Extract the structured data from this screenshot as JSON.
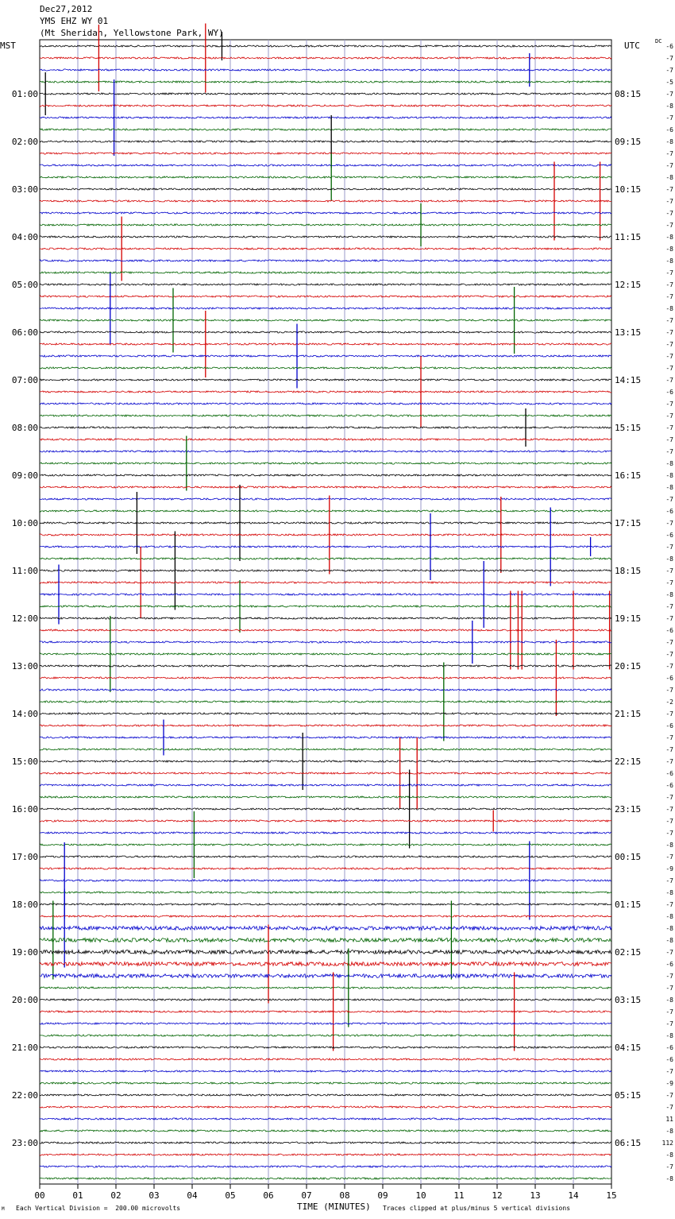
{
  "header": {
    "date": "Dec27,2012",
    "station": "YMS EHZ WY 01",
    "location": "(Mt Sheridan, Yellowstone Park, WY)"
  },
  "left_tz": "MST",
  "right_tz": "UTC",
  "dc_label": "DC",
  "footer": {
    "scale_note": "Each Vertical Division =  200.00 microvolts",
    "xlabel": "TIME (MINUTES)",
    "clip_note": "Traces clipped at plus/minus 5 vertical divisions",
    "corner_mark": "M"
  },
  "trace_colors": [
    "#000000",
    "#d40000",
    "#0000cc",
    "#006400"
  ],
  "grid_color": "#9a9ac8",
  "chart_data": {
    "type": "line",
    "title": "YMS EHZ WY 01 helicorder",
    "xlabel": "TIME (MINUTES)",
    "xlim": [
      0,
      15
    ],
    "x_ticks": [
      "00",
      "01",
      "02",
      "03",
      "04",
      "05",
      "06",
      "07",
      "08",
      "09",
      "10",
      "11",
      "12",
      "13",
      "14",
      "15"
    ],
    "rows_per_hour": 4,
    "trace_count": 96,
    "left_hour_labels": [
      "01:00",
      "02:00",
      "03:00",
      "04:00",
      "05:00",
      "06:00",
      "07:00",
      "08:00",
      "09:00",
      "10:00",
      "11:00",
      "12:00",
      "13:00",
      "14:00",
      "15:00",
      "16:00",
      "17:00",
      "18:00",
      "19:00",
      "20:00",
      "21:00",
      "22:00",
      "23:00"
    ],
    "right_hour_labels": [
      "08:15",
      "09:15",
      "10:15",
      "11:15",
      "12:15",
      "13:15",
      "14:15",
      "15:15",
      "16:15",
      "17:15",
      "18:15",
      "19:15",
      "20:15",
      "21:15",
      "22:15",
      "23:15",
      "00:15",
      "01:15",
      "02:15",
      "03:15",
      "04:15",
      "05:15",
      "06:15"
    ],
    "dc_offsets": [
      "-6",
      "-7",
      "-7",
      "-5",
      "-7",
      "-8",
      "-7",
      "-6",
      "-8",
      "-7",
      "-7",
      "-8",
      "-7",
      "-7",
      "-7",
      "-7",
      "-8",
      "-8",
      "-8",
      "-7",
      "-7",
      "-7",
      "-8",
      "-7",
      "-7",
      "-7",
      "-7",
      "-7",
      "-7",
      "-6",
      "-7",
      "-7",
      "-7",
      "-7",
      "-7",
      "-8",
      "-8",
      "-8",
      "-7",
      "-6",
      "-7",
      "-6",
      "-7",
      "-8",
      "-7",
      "-7",
      "-8",
      "-7",
      "-7",
      "-6",
      "-7",
      "-7",
      "-7",
      "-6",
      "-7",
      "-2",
      "-7",
      "-6",
      "-7",
      "-7",
      "-7",
      "-6",
      "-6",
      "-7",
      "-7",
      "-7",
      "-7",
      "-8",
      "-7",
      "-9",
      "-7",
      "-8",
      "-7",
      "-8",
      "-8",
      "-8",
      "-7",
      "-6",
      "-7",
      "-7",
      "-8",
      "-7",
      "-7",
      "-8",
      "-6",
      "-6",
      "-7",
      "-9",
      "-7",
      "-7",
      "11",
      "-8",
      "112",
      "-8",
      "-7",
      "-8",
      "-7",
      "-7",
      "-8",
      "-7"
    ],
    "spikes": [
      {
        "row": 0,
        "x": 4.78,
        "amp": 1.2
      },
      {
        "row": 1,
        "x": 1.55,
        "amp": 2.8
      },
      {
        "row": 1,
        "x": 4.35,
        "amp": 2.9
      },
      {
        "row": 2,
        "x": 12.85,
        "amp": 1.4
      },
      {
        "row": 4,
        "x": 0.15,
        "amp": 1.8
      },
      {
        "row": 6,
        "x": 1.95,
        "amp": 3.2
      },
      {
        "row": 8,
        "x": 7.65,
        "amp": 2.2
      },
      {
        "row": 11,
        "x": 7.65,
        "amp": 2.0
      },
      {
        "row": 13,
        "x": 13.5,
        "amp": 3.3
      },
      {
        "row": 13,
        "x": 14.7,
        "amp": 3.3
      },
      {
        "row": 15,
        "x": 10.0,
        "amp": 1.8
      },
      {
        "row": 17,
        "x": 2.15,
        "amp": 2.7
      },
      {
        "row": 22,
        "x": 1.85,
        "amp": 3.0
      },
      {
        "row": 23,
        "x": 3.5,
        "amp": 2.7
      },
      {
        "row": 23,
        "x": 12.45,
        "amp": 2.8
      },
      {
        "row": 25,
        "x": 4.35,
        "amp": 2.8
      },
      {
        "row": 26,
        "x": 6.75,
        "amp": 2.7
      },
      {
        "row": 29,
        "x": 10.0,
        "amp": 3.0
      },
      {
        "row": 32,
        "x": 12.75,
        "amp": 1.6
      },
      {
        "row": 35,
        "x": 3.85,
        "amp": 2.3
      },
      {
        "row": 40,
        "x": 2.55,
        "amp": 2.6
      },
      {
        "row": 40,
        "x": 5.25,
        "amp": 3.2
      },
      {
        "row": 41,
        "x": 7.6,
        "amp": 3.3
      },
      {
        "row": 41,
        "x": 12.1,
        "amp": 3.2
      },
      {
        "row": 42,
        "x": 14.45,
        "amp": 0.8
      },
      {
        "row": 42,
        "x": 13.4,
        "amp": 3.3
      },
      {
        "row": 42,
        "x": 10.25,
        "amp": 2.8
      },
      {
        "row": 44,
        "x": 3.55,
        "amp": 3.3
      },
      {
        "row": 45,
        "x": 2.65,
        "amp": 3.0
      },
      {
        "row": 46,
        "x": 0.5,
        "amp": 2.5
      },
      {
        "row": 46,
        "x": 11.65,
        "amp": 2.8
      },
      {
        "row": 47,
        "x": 5.25,
        "amp": 2.2
      },
      {
        "row": 49,
        "x": 12.35,
        "amp": 3.3
      },
      {
        "row": 49,
        "x": 12.55,
        "amp": 3.3
      },
      {
        "row": 49,
        "x": 12.65,
        "amp": 3.3
      },
      {
        "row": 49,
        "x": 14.0,
        "amp": 3.3
      },
      {
        "row": 49,
        "x": 14.95,
        "amp": 3.3
      },
      {
        "row": 50,
        "x": 11.35,
        "amp": 1.8
      },
      {
        "row": 51,
        "x": 1.85,
        "amp": 3.2
      },
      {
        "row": 53,
        "x": 13.55,
        "amp": 3.2
      },
      {
        "row": 55,
        "x": 10.6,
        "amp": 3.3
      },
      {
        "row": 58,
        "x": 3.25,
        "amp": 1.5
      },
      {
        "row": 60,
        "x": 6.9,
        "amp": 2.4
      },
      {
        "row": 61,
        "x": 9.45,
        "amp": 3.0
      },
      {
        "row": 61,
        "x": 9.9,
        "amp": 3.0
      },
      {
        "row": 64,
        "x": 9.7,
        "amp": 3.3
      },
      {
        "row": 65,
        "x": 11.9,
        "amp": 0.9
      },
      {
        "row": 67,
        "x": 4.05,
        "amp": 2.8
      },
      {
        "row": 70,
        "x": 0.65,
        "amp": 3.2
      },
      {
        "row": 70,
        "x": 12.85,
        "amp": 3.3
      },
      {
        "row": 74,
        "x": 0.65,
        "amp": 3.3
      },
      {
        "row": 75,
        "x": 0.35,
        "amp": 3.3
      },
      {
        "row": 75,
        "x": 10.8,
        "amp": 3.3
      },
      {
        "row": 77,
        "x": 6.0,
        "amp": 3.3
      },
      {
        "row": 79,
        "x": 8.1,
        "amp": 3.3
      },
      {
        "row": 81,
        "x": 7.7,
        "amp": 3.3
      },
      {
        "row": 81,
        "x": 12.45,
        "amp": 3.3
      }
    ]
  }
}
